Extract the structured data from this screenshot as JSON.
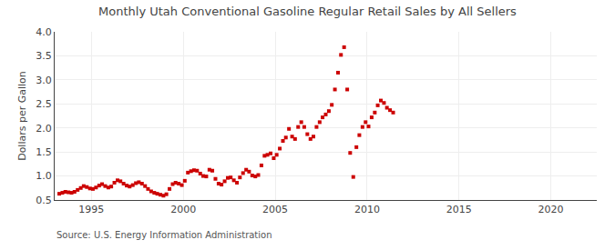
{
  "chart_data": {
    "type": "scatter",
    "title": "Monthly Utah Conventional Gasoline Regular Retail Sales by All Sellers",
    "ylabel": "Dollars per Gallon",
    "annotations": [
      "Source: U.S. Energy Information Administration"
    ],
    "color": "#cc0000",
    "marker": "square",
    "grid": true,
    "xlim": [
      1993.0,
      2022.5
    ],
    "xticks": [
      1995,
      2000,
      2005,
      2010,
      2015,
      2020
    ],
    "ylim": [
      0.5,
      4.0
    ],
    "yticks": [
      0.5,
      {
        "value": 1.0,
        "label": "1.0"
      },
      1.5,
      {
        "value": 2.0,
        "label": "2.0"
      },
      2.5,
      {
        "value": 3.0,
        "label": "3.0"
      },
      3.5,
      {
        "value": 4.0,
        "label": "4.0"
      }
    ],
    "x": [
      1993.25,
      1993.42,
      1993.58,
      1993.75,
      1993.92,
      1994.08,
      1994.25,
      1994.42,
      1994.58,
      1994.75,
      1994.92,
      1995.08,
      1995.25,
      1995.42,
      1995.58,
      1995.75,
      1995.92,
      1996.08,
      1996.25,
      1996.42,
      1996.58,
      1996.75,
      1996.92,
      1997.08,
      1997.25,
      1997.42,
      1997.58,
      1997.75,
      1997.92,
      1998.08,
      1998.25,
      1998.42,
      1998.58,
      1998.75,
      1998.92,
      1999.08,
      1999.25,
      1999.42,
      1999.58,
      1999.75,
      1999.92,
      2000.08,
      2000.25,
      2000.42,
      2000.58,
      2000.75,
      2000.92,
      2001.08,
      2001.25,
      2001.42,
      2001.58,
      2001.75,
      2001.92,
      2002.08,
      2002.25,
      2002.42,
      2002.58,
      2002.75,
      2002.92,
      2003.08,
      2003.25,
      2003.42,
      2003.58,
      2003.75,
      2003.92,
      2004.08,
      2004.25,
      2004.42,
      2004.58,
      2004.75,
      2004.92,
      2005.08,
      2005.25,
      2005.42,
      2005.58,
      2005.75,
      2005.92,
      2006.08,
      2006.25,
      2006.42,
      2006.58,
      2006.75,
      2006.92,
      2007.08,
      2007.25,
      2007.42,
      2007.58,
      2007.75,
      2007.92,
      2008.08,
      2008.25,
      2008.42,
      2008.58,
      2008.75,
      2008.92,
      2009.08,
      2009.25,
      2009.42,
      2009.58,
      2009.75,
      2009.92,
      2010.08,
      2010.25,
      2010.42,
      2010.58,
      2010.75,
      2010.92,
      2011.08,
      2011.25,
      2011.42
    ],
    "values": [
      0.63,
      0.65,
      0.67,
      0.66,
      0.65,
      0.67,
      0.71,
      0.75,
      0.79,
      0.77,
      0.74,
      0.73,
      0.76,
      0.8,
      0.83,
      0.79,
      0.76,
      0.78,
      0.86,
      0.91,
      0.89,
      0.84,
      0.8,
      0.78,
      0.81,
      0.85,
      0.87,
      0.84,
      0.79,
      0.73,
      0.68,
      0.65,
      0.63,
      0.61,
      0.59,
      0.62,
      0.73,
      0.83,
      0.86,
      0.84,
      0.81,
      0.9,
      1.07,
      1.1,
      1.12,
      1.11,
      1.05,
      1.0,
      0.99,
      1.13,
      1.11,
      0.94,
      0.84,
      0.82,
      0.89,
      0.96,
      0.97,
      0.91,
      0.86,
      0.97,
      1.06,
      1.13,
      1.09,
      1.01,
      0.99,
      1.02,
      1.22,
      1.42,
      1.44,
      1.47,
      1.37,
      1.44,
      1.57,
      1.73,
      1.8,
      1.98,
      1.82,
      1.77,
      2.02,
      2.12,
      2.02,
      1.87,
      1.77,
      1.82,
      2.02,
      2.12,
      2.22,
      2.28,
      2.35,
      2.48,
      2.8,
      3.15,
      3.52,
      3.68,
      2.8,
      1.48,
      0.98,
      1.6,
      1.85,
      2.02,
      2.12,
      2.03,
      2.22,
      2.32,
      2.47,
      2.57,
      2.52,
      2.42,
      2.37,
      2.32
    ]
  }
}
